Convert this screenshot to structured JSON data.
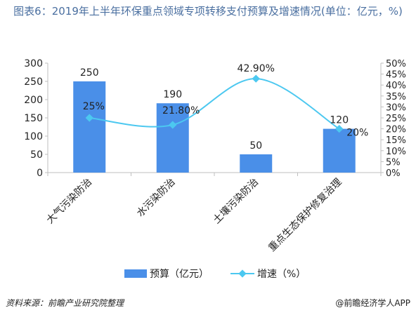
{
  "title": "图表6：2019年上半年环保重点领域专项转移支付预算及增速情况(单位：亿元，%)",
  "footer": {
    "source": "资料来源：前瞻产业研究院整理",
    "brand": "@前瞻经济学人APP"
  },
  "colors": {
    "bar": "#4a8fe8",
    "line": "#4cc8f0",
    "axis": "#bfbfbf",
    "text": "#222222"
  },
  "chart_data": {
    "type": "bar",
    "categories": [
      "大气污染防治",
      "水污染防治",
      "土壤污染防治",
      "重点生态保护修复治理"
    ],
    "series": [
      {
        "name": "预算（亿元）",
        "type": "bar",
        "axis": "left",
        "values": [
          250,
          190,
          50,
          120
        ],
        "labels": [
          "250",
          "190",
          "50",
          "120"
        ]
      },
      {
        "name": "增速（%）",
        "type": "line",
        "axis": "right",
        "values": [
          25,
          21.8,
          42.9,
          20
        ],
        "labels": [
          "25%",
          "21.80%",
          "42.90%",
          "20%"
        ]
      }
    ],
    "ylim": [
      0,
      300
    ],
    "yticks": [
      "0",
      "50",
      "100",
      "150",
      "200",
      "250",
      "300"
    ],
    "y2lim": [
      0,
      50
    ],
    "y2ticks": [
      "0%",
      "5%",
      "10%",
      "15%",
      "20%",
      "25%",
      "30%",
      "35%",
      "40%",
      "45%",
      "50%"
    ],
    "legend_position": "bottom",
    "grid": false
  }
}
